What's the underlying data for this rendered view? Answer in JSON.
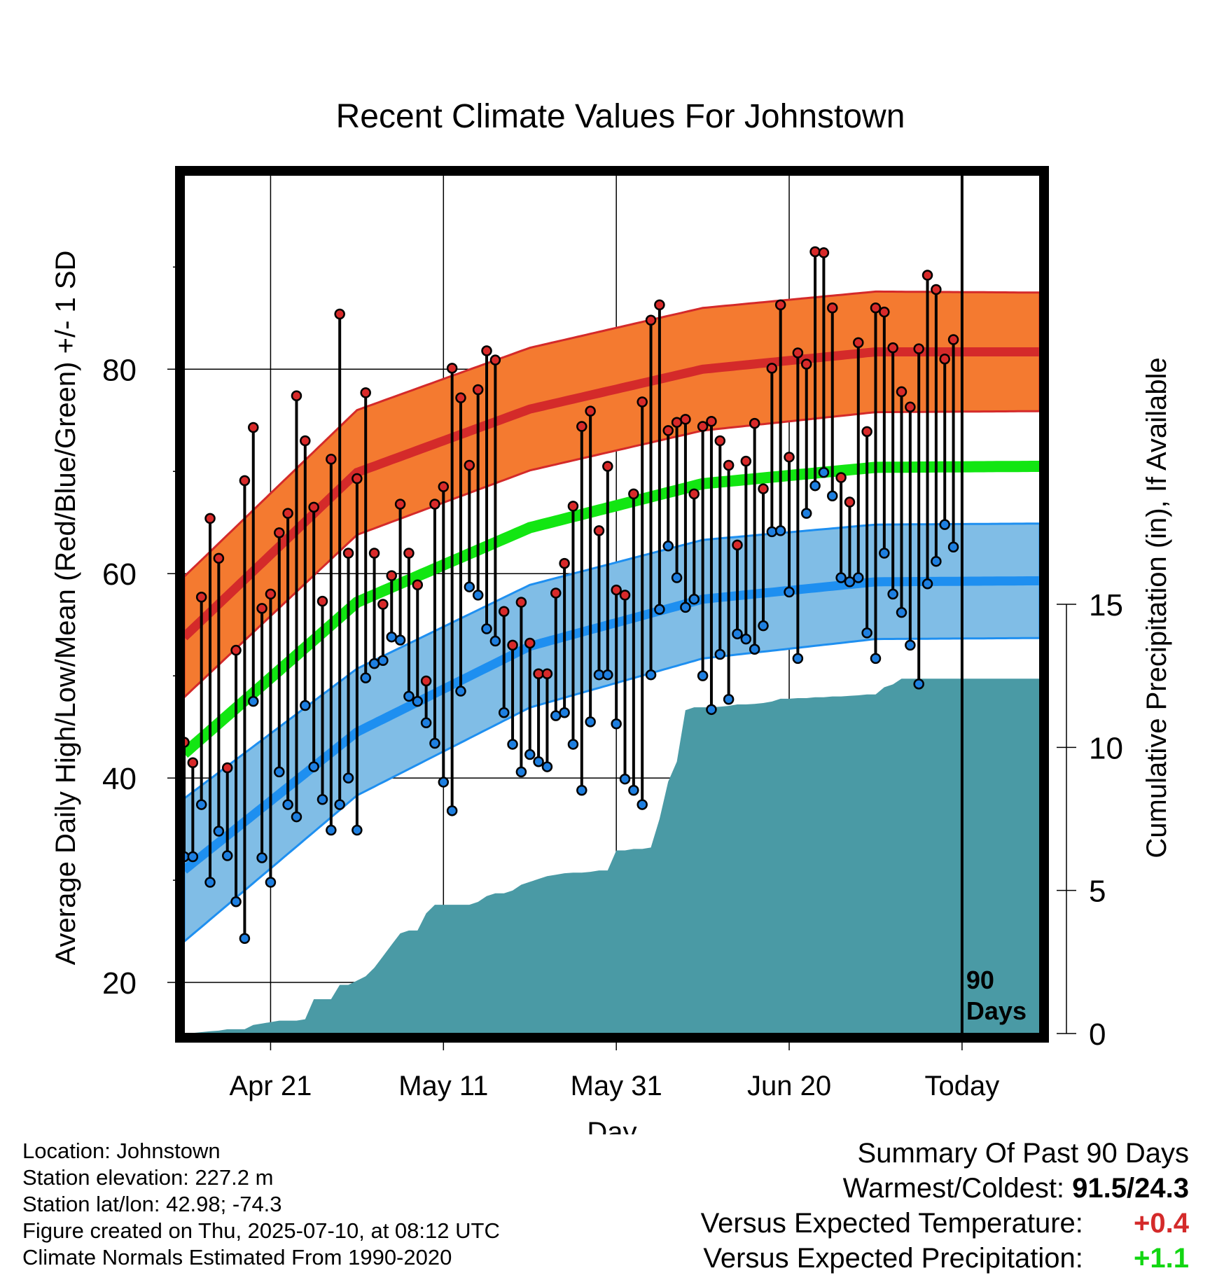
{
  "chart_data": {
    "type": "line",
    "title": "Recent Climate Values For Johnstown",
    "xlabel": "Day",
    "ylabel": "Average Daily High/Low/Mean (Red/Blue/Green) +/- 1 SD",
    "y2label": "Cumulative Precipitation (in), If Available",
    "ylim": [
      15,
      99
    ],
    "y2lim": [
      0,
      30
    ],
    "yticks": [
      20,
      40,
      60,
      80
    ],
    "yticklabels": [
      "20",
      "40",
      "60",
      "80"
    ],
    "y2ticks": [
      0,
      5,
      10,
      15
    ],
    "y2ticklabels": [
      "0",
      "5",
      "10",
      "15"
    ],
    "xlim": [
      1,
      100
    ],
    "xticks": [
      11,
      31,
      51,
      71,
      91
    ],
    "xticklabels": [
      "Apr 21",
      "May 11",
      "May 31",
      "Jun 20",
      "Today"
    ],
    "today_marker": {
      "x": 91,
      "label_line1": "90",
      "label_line2": "Days"
    },
    "grid": true,
    "colors": {
      "high_band": "#f47a30",
      "high_line": "#d42a2a",
      "low_band": "#80bde6",
      "low_line": "#1e8ff0",
      "mean_line": "#12e612",
      "precip": "#4a9aa5",
      "high_dot": "#d82a2a",
      "low_dot": "#1e7fe0"
    },
    "normals": {
      "high_mean": [
        53.8,
        69.9,
        76.1,
        80.0,
        81.7,
        81.7
      ],
      "high_sd": [
        5.9,
        6.1,
        6.0,
        6.0,
        5.9,
        5.8
      ],
      "low_mean": [
        31.0,
        44.5,
        52.9,
        57.5,
        59.2,
        59.3
      ],
      "low_sd": [
        7.0,
        6.2,
        6.0,
        5.8,
        5.6,
        5.6
      ],
      "mean_mean": [
        42.4,
        57.2,
        64.5,
        68.8,
        70.4,
        70.5
      ]
    },
    "series": [
      {
        "name": "High",
        "values": [
          43.5,
          41.5,
          57.7,
          65.4,
          61.5,
          41,
          52.5,
          69.1,
          74.3,
          56.6,
          58,
          64,
          65.9,
          77.4,
          73,
          66.5,
          57.3,
          71.2,
          85.4,
          62,
          69.3,
          77.7,
          62,
          57,
          59.8,
          66.8,
          62,
          58.9,
          49.5,
          66.8,
          68.5,
          80.1,
          77.2,
          70.6,
          78,
          81.8,
          80.9,
          56.3,
          53,
          57.2,
          53.2,
          50.2,
          50.2,
          58.1,
          61,
          66.6,
          74.4,
          75.9,
          64.2,
          70.5,
          58.4,
          57.9,
          67.8,
          76.8,
          84.8,
          86.3,
          74,
          74.8,
          75.1,
          67.8,
          74.4,
          74.9,
          73,
          70.6,
          62.8,
          71,
          74.7,
          68.3,
          80.1,
          86.3,
          71.4,
          81.6,
          80.5,
          91.5,
          91.4,
          86,
          69.4,
          67,
          82.6,
          73.9,
          86,
          85.6,
          82.1,
          77.8,
          76.3,
          82,
          89.2,
          87.8,
          81,
          82.9
        ]
      },
      {
        "name": "Low",
        "values": [
          32.3,
          32.3,
          37.4,
          29.8,
          34.8,
          32.4,
          27.9,
          24.3,
          47.5,
          32.2,
          29.8,
          40.6,
          37.4,
          36.2,
          47.1,
          41.1,
          37.9,
          34.9,
          37.4,
          40,
          34.9,
          49.8,
          51.2,
          51.5,
          53.8,
          53.5,
          48,
          47.5,
          45.4,
          43.4,
          39.6,
          36.8,
          48.5,
          58.7,
          57.9,
          54.6,
          53.4,
          46.4,
          43.3,
          40.6,
          42.3,
          41.6,
          41.1,
          46.1,
          46.4,
          43.3,
          38.8,
          45.5,
          50.1,
          50.1,
          45.3,
          39.9,
          38.8,
          37.4,
          50.1,
          56.5,
          62.7,
          59.6,
          56.7,
          57.5,
          50,
          46.7,
          52.1,
          47.7,
          54.1,
          53.6,
          52.6,
          54.9,
          64.1,
          64.2,
          58.2,
          51.7,
          65.9,
          68.6,
          69.9,
          67.6,
          59.6,
          59.2,
          59.6,
          54.2,
          51.7,
          62,
          58,
          56.2,
          53,
          49.2,
          59,
          61.2,
          64.8,
          62.6
        ]
      },
      {
        "name": "Cumulative Precipitation",
        "values": [
          0,
          0.02,
          0.05,
          0.08,
          0.1,
          0.15,
          0.15,
          0.15,
          0.3,
          0.35,
          0.4,
          0.45,
          0.45,
          0.45,
          0.5,
          1.2,
          1.2,
          1.2,
          1.7,
          1.7,
          1.85,
          2.0,
          2.3,
          2.7,
          3.1,
          3.5,
          3.6,
          3.6,
          4.2,
          4.5,
          4.5,
          4.5,
          4.5,
          4.5,
          4.6,
          4.8,
          4.9,
          4.9,
          5.0,
          5.2,
          5.3,
          5.4,
          5.5,
          5.55,
          5.6,
          5.62,
          5.62,
          5.65,
          5.7,
          5.7,
          6.4,
          6.4,
          6.45,
          6.45,
          6.5,
          7.5,
          8.8,
          9.5,
          11.3,
          11.4,
          11.4,
          11.4,
          11.42,
          11.45,
          11.5,
          11.5,
          11.52,
          11.55,
          11.6,
          11.7,
          11.7,
          11.72,
          11.72,
          11.75,
          11.75,
          11.78,
          11.78,
          11.8,
          11.82,
          11.85,
          11.85,
          12.1,
          12.2,
          12.4,
          12.4,
          12.4,
          12.4,
          12.4,
          12.4,
          12.4,
          12.4,
          12.4,
          12.4,
          12.4,
          12.4,
          12.4,
          12.4,
          12.4,
          12.4,
          12.4
        ]
      }
    ]
  },
  "footer": {
    "location": "Location: Johnstown",
    "elevation": "Station elevation: 227.2 m",
    "latlon": "Station lat/lon: 42.98; -74.3",
    "created": "Figure created on Thu, 2025-07-10, at 08:12 UTC",
    "normals": "Climate Normals Estimated From 1990-2020"
  },
  "summary": {
    "title": "Summary Of Past 90 Days",
    "warmest_label": "Warmest/Coldest:",
    "warmest_value": "91.5/24.3",
    "temp_label": "Versus Expected Temperature:",
    "temp_value": "+0.4",
    "temp_color": "#d42a2a",
    "precip_label": "Versus Expected Precipitation:",
    "precip_value": "+1.1",
    "precip_color": "#12d612"
  }
}
